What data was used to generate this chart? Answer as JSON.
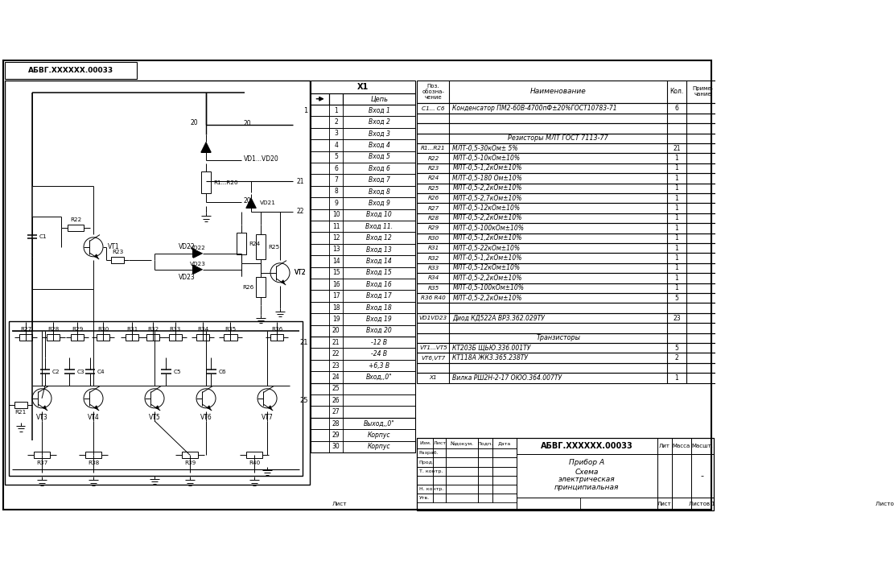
{
  "bg_color": "#ffffff",
  "bom_rows": [
    [
      "C1... C6",
      "Конденсатор ПМ2-60В-4700пФ±20%ГОСТ10783-71",
      "6",
      ""
    ],
    [
      "",
      "",
      "",
      ""
    ],
    [
      "",
      "",
      "",
      ""
    ],
    [
      "",
      "Резисторы МЛТ ГОСТ 7113-77",
      "",
      ""
    ],
    [
      "R1...R21",
      "МЛТ-0,5-30кОм± 5%",
      "21",
      ""
    ],
    [
      "R22",
      "МЛТ-0,5-10кОм±10%",
      "1",
      ""
    ],
    [
      "R23",
      "МЛТ-0,5-1,2кОм±10%",
      "1",
      ""
    ],
    [
      "R24",
      "МЛТ-0,5-180 Ом±10%",
      "1",
      ""
    ],
    [
      "R25",
      "МЛТ-0,5-2,2кОм±10%",
      "1",
      ""
    ],
    [
      "R26",
      "МЛТ-0,5-2,7кОм±10%",
      "1",
      ""
    ],
    [
      "R27",
      "МЛТ-0,5-12кОм±10%",
      "1",
      ""
    ],
    [
      "R28",
      "МЛТ-0,5-2,2кОм±10%",
      "1",
      ""
    ],
    [
      "R29",
      "МЛТ-0,5-100кОм±10%",
      "1",
      ""
    ],
    [
      "R30",
      "МЛТ-0,5-1,2кОм±10%",
      "1",
      ""
    ],
    [
      "R31",
      "МЛТ-0,5-22кОм±10%",
      "1",
      ""
    ],
    [
      "R32",
      "МЛТ-0,5-1,2кОм±10%",
      "1",
      ""
    ],
    [
      "R33",
      "МЛТ-0,5-12кОм±10%",
      "1",
      ""
    ],
    [
      "R34",
      "МЛТ-0,5-2,2кОм±10%",
      "1",
      ""
    ],
    [
      "R35",
      "МЛТ-0,5-100кОм±10%",
      "1",
      ""
    ],
    [
      "R36 R40",
      "МЛТ-0,5-2,2кОм±10%",
      "5",
      ""
    ],
    [
      "",
      "",
      "",
      ""
    ],
    [
      "VD1VD23",
      "Диод КД522А ВРЗ.362.029ТУ",
      "23",
      ""
    ],
    [
      "",
      "",
      "",
      ""
    ],
    [
      "",
      "Транзисторы",
      "",
      ""
    ],
    [
      "VT1...VT5",
      "КТ203Б ЩЬЮ.336.001ТУ",
      "5",
      ""
    ],
    [
      "VT6,VT7",
      "КТ118А ЖК3.365.238ТУ",
      "2",
      ""
    ],
    [
      "",
      "",
      "",
      ""
    ],
    [
      "X1",
      "Вилка РШ2Н-2-17 ОЮО.364.007ТУ",
      "1",
      ""
    ]
  ],
  "connector_pins": [
    [
      1,
      "Вход 1"
    ],
    [
      2,
      "Вход 2"
    ],
    [
      3,
      "Вход 3"
    ],
    [
      4,
      "Вход 4"
    ],
    [
      5,
      "Вход 5"
    ],
    [
      6,
      "Вход 6"
    ],
    [
      7,
      "Вход 7"
    ],
    [
      8,
      "Вход 8"
    ],
    [
      9,
      "Вход 9"
    ],
    [
      10,
      "Вход 10"
    ],
    [
      11,
      "Вход 11."
    ],
    [
      12,
      "Вход 12"
    ],
    [
      13,
      "Вход 13"
    ],
    [
      14,
      "Вход 14"
    ],
    [
      15,
      "Вход 15"
    ],
    [
      16,
      "Вход 16"
    ],
    [
      17,
      "Вход 17"
    ],
    [
      18,
      "Вход 18"
    ],
    [
      19,
      "Вход 19"
    ],
    [
      20,
      "Вход 20"
    ],
    [
      21,
      "-12 В"
    ],
    [
      22,
      "-24 В"
    ],
    [
      23,
      "+6,3 В"
    ],
    [
      24,
      "Вход,,0\""
    ],
    [
      25,
      ""
    ],
    [
      26,
      ""
    ],
    [
      27,
      ""
    ],
    [
      28,
      "Выход,,0\""
    ],
    [
      29,
      "Корпус"
    ],
    [
      30,
      "Корпус"
    ]
  ],
  "stamp_left_labels": [
    "Изм.",
    "Лист",
    "№докум.",
    "Подп.",
    "Дата"
  ],
  "stamp_row_labels": [
    "Разраб.",
    "Прод.",
    "Т. контр.",
    "",
    "Н. контр.",
    "Утв."
  ],
  "doc_number": "АБВГ.XXXXXX.00033",
  "device_name": "Прибор А",
  "schema_lines": [
    "Схема",
    "электрическая",
    "принципиальная"
  ]
}
